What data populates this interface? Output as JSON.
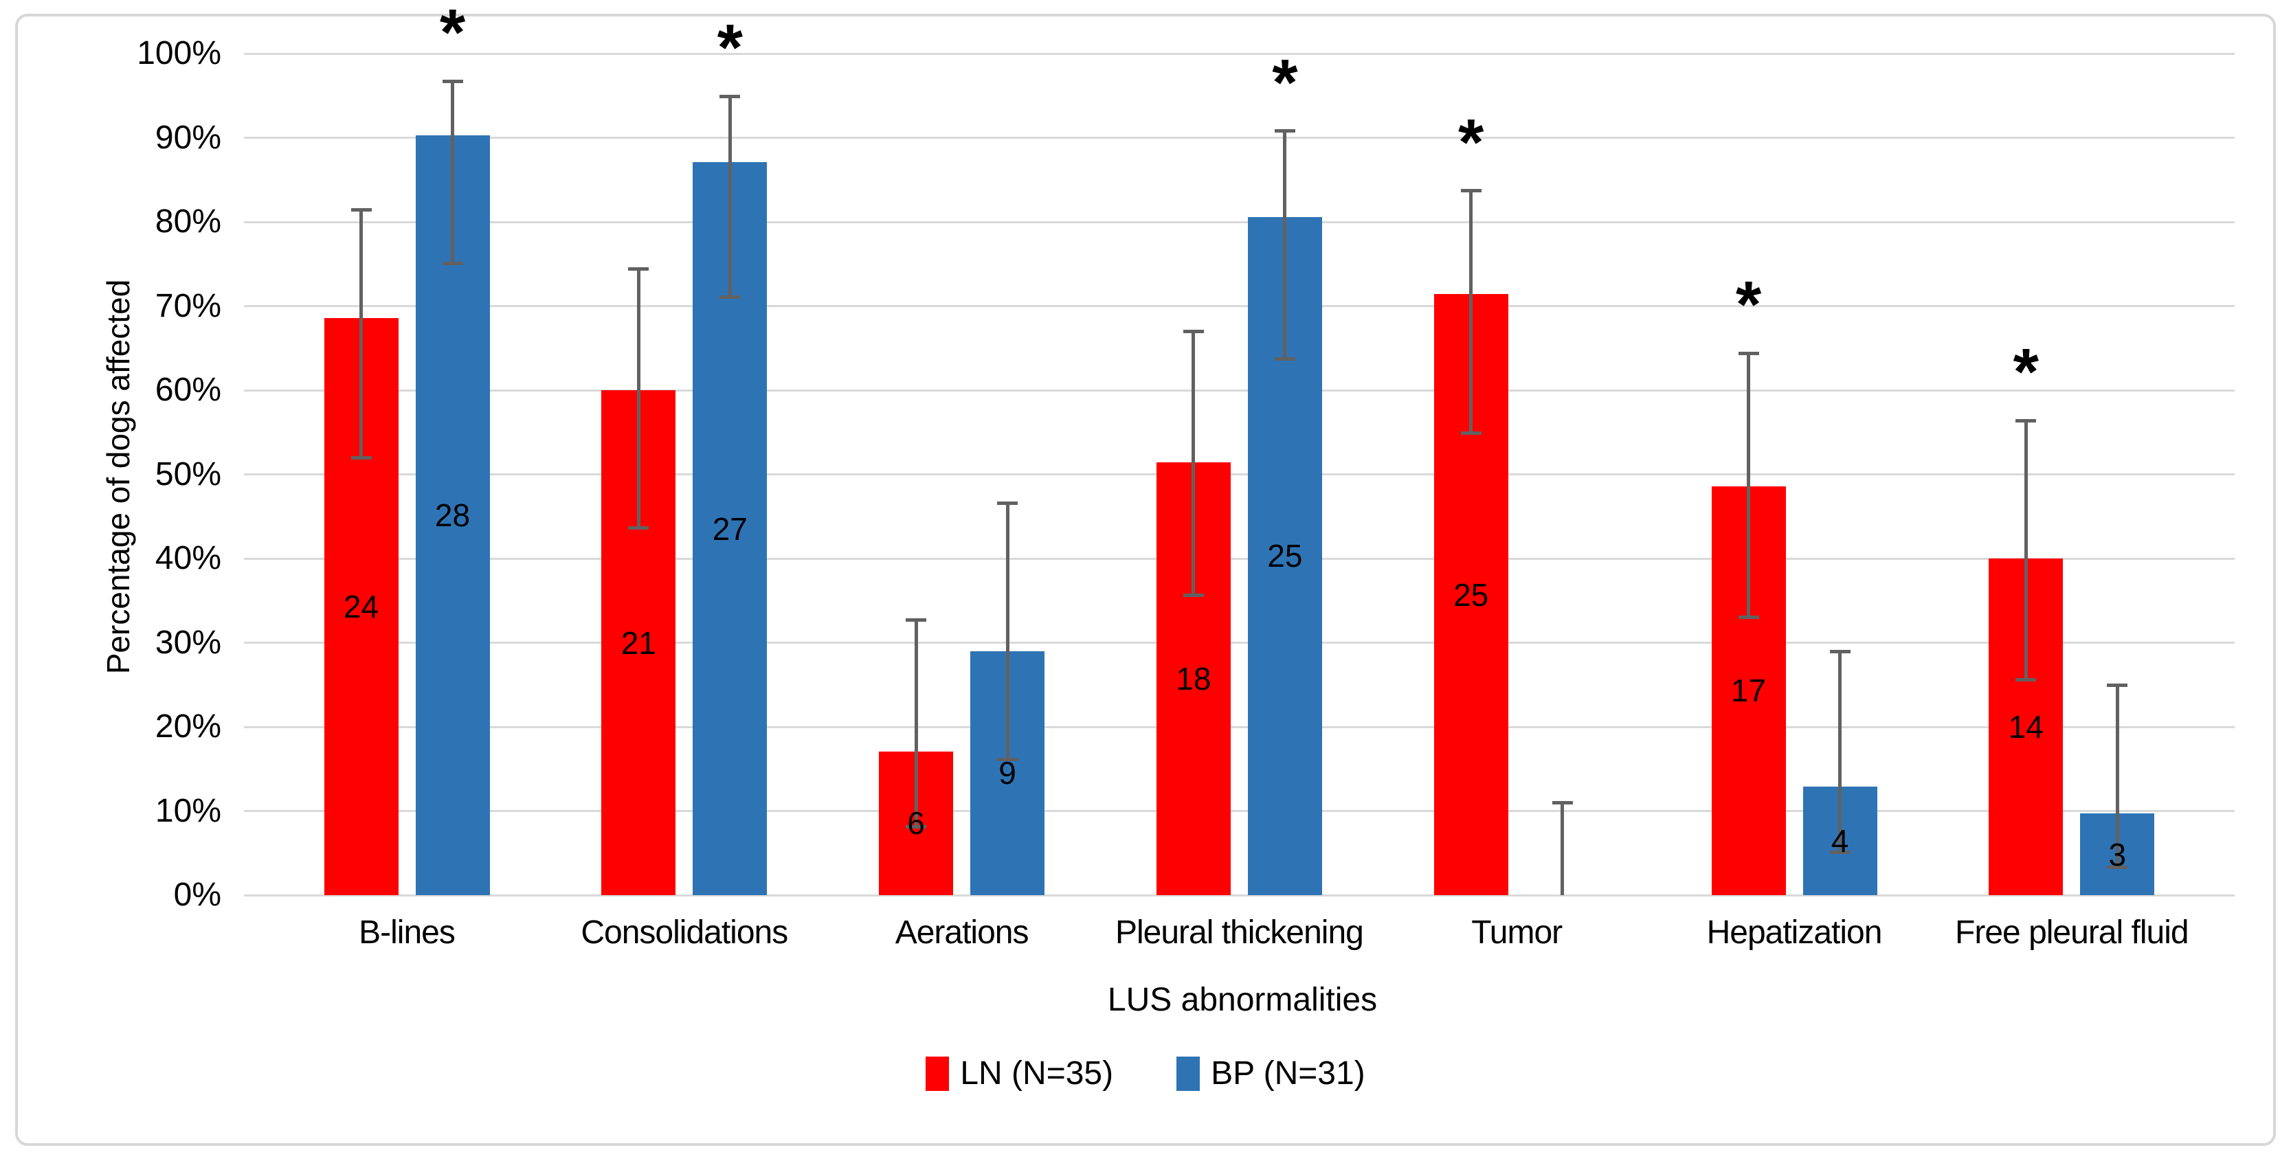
{
  "chart_data": {
    "type": "bar",
    "title": "",
    "xlabel": "LUS abnormalities",
    "ylabel": "Percentage of dogs affected",
    "ylim": [
      0,
      100
    ],
    "ytick_step": 10,
    "ytick_labels": [
      "0%",
      "10%",
      "20%",
      "30%",
      "40%",
      "50%",
      "60%",
      "70%",
      "80%",
      "90%",
      "100%"
    ],
    "grid": "horizontal",
    "legend_position": "bottom-center",
    "error_bars": "95% CI",
    "significance_marker": "*",
    "categories": [
      "B-lines",
      "Consolidations",
      "Aerations",
      "Pleural thickening",
      "Tumor",
      "Hepatization",
      "Free pleural fluid"
    ],
    "series": [
      {
        "name": "LN (N=35)",
        "color": "#FF0000",
        "values_pct": [
          68.6,
          60.0,
          17.1,
          51.4,
          71.4,
          48.6,
          40.0
        ],
        "bar_labels": [
          "24",
          "21",
          "6",
          "18",
          "25",
          "17",
          "14"
        ],
        "error_low_pct": [
          52.0,
          43.6,
          8.1,
          35.6,
          54.9,
          33.0,
          25.6
        ],
        "error_high_pct": [
          81.4,
          74.4,
          32.7,
          67.0,
          83.7,
          64.4,
          56.4
        ],
        "significant": [
          false,
          false,
          false,
          false,
          true,
          true,
          true
        ]
      },
      {
        "name": "BP (N=31)",
        "color": "#2E74B5",
        "values_pct": [
          90.3,
          87.1,
          29.0,
          80.6,
          0.0,
          12.9,
          9.7
        ],
        "bar_labels": [
          "28",
          "27",
          "9",
          "25",
          "",
          "4",
          "3"
        ],
        "error_low_pct": [
          75.1,
          71.1,
          16.1,
          63.7,
          0.0,
          5.1,
          3.3
        ],
        "error_high_pct": [
          96.7,
          94.9,
          46.6,
          90.8,
          11.0,
          28.9,
          24.9
        ],
        "significant": [
          true,
          true,
          false,
          true,
          false,
          false,
          false
        ]
      }
    ],
    "colors": {
      "error_bar": "#616161",
      "gridline": "#D9D9D9",
      "figure_border": "#D7D7D7",
      "text": "#000000"
    }
  }
}
